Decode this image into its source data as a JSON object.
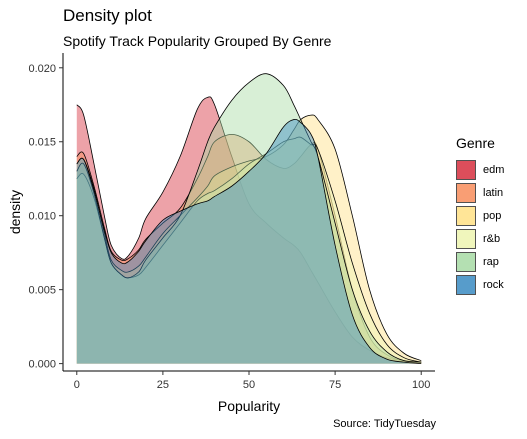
{
  "chart_data": {
    "type": "area",
    "title": "Density plot",
    "subtitle": "Spotify Track Popularity Grouped By Genre",
    "caption": "Source: TidyTuesday",
    "xlabel": "Popularity",
    "ylabel": "density",
    "xlim": [
      -4,
      104
    ],
    "ylim": [
      -0.0005,
      0.021
    ],
    "x_ticks": [
      0,
      25,
      50,
      75,
      100
    ],
    "y_ticks": [
      0.0,
      0.005,
      0.01,
      0.015,
      0.02
    ],
    "y_tick_labels": [
      "0.000",
      "0.005",
      "0.010",
      "0.015",
      "0.020"
    ],
    "grid": false,
    "legend_position": "right",
    "legend_title": "Genre",
    "fill_opacity": 0.45,
    "x": [
      0,
      2,
      5,
      8,
      10,
      13,
      15,
      18,
      20,
      25,
      30,
      35,
      38,
      40,
      45,
      50,
      55,
      60,
      63,
      65,
      68,
      70,
      75,
      80,
      85,
      90,
      95,
      100
    ],
    "series": [
      {
        "name": "edm",
        "color": "#D7303F",
        "values": [
          0.0175,
          0.0168,
          0.0135,
          0.01,
          0.008,
          0.0071,
          0.0073,
          0.0085,
          0.0098,
          0.0116,
          0.014,
          0.0172,
          0.018,
          0.0175,
          0.014,
          0.0108,
          0.0095,
          0.0085,
          0.008,
          0.0075,
          0.0063,
          0.0055,
          0.0035,
          0.0018,
          0.0009,
          0.0004,
          0.0002,
          0.0001
        ]
      },
      {
        "name": "latin",
        "color": "#F98E5C",
        "values": [
          0.014,
          0.0142,
          0.012,
          0.0092,
          0.0076,
          0.007,
          0.0071,
          0.0077,
          0.0084,
          0.0095,
          0.0105,
          0.0125,
          0.014,
          0.015,
          0.0155,
          0.015,
          0.0138,
          0.0132,
          0.0135,
          0.014,
          0.0148,
          0.0145,
          0.01,
          0.005,
          0.0018,
          0.0006,
          0.0002,
          0.0001
        ]
      },
      {
        "name": "pop",
        "color": "#FFE186",
        "values": [
          0.0135,
          0.0138,
          0.0118,
          0.0088,
          0.007,
          0.0063,
          0.0062,
          0.0066,
          0.0072,
          0.0088,
          0.01,
          0.0112,
          0.012,
          0.0127,
          0.0133,
          0.0137,
          0.014,
          0.0148,
          0.0158,
          0.0165,
          0.0168,
          0.0165,
          0.0145,
          0.01,
          0.005,
          0.002,
          0.0007,
          0.0002
        ]
      },
      {
        "name": "r&b",
        "color": "#EEF5B1",
        "values": [
          0.0125,
          0.0128,
          0.0112,
          0.0085,
          0.0068,
          0.006,
          0.0058,
          0.006,
          0.0065,
          0.008,
          0.0095,
          0.011,
          0.0115,
          0.0117,
          0.0125,
          0.0135,
          0.0142,
          0.015,
          0.0152,
          0.0153,
          0.0148,
          0.0145,
          0.011,
          0.0068,
          0.0034,
          0.0013,
          0.0004,
          0.0001
        ]
      },
      {
        "name": "rap",
        "color": "#A8DBA5",
        "values": [
          0.013,
          0.0135,
          0.0115,
          0.0085,
          0.0068,
          0.006,
          0.0058,
          0.0062,
          0.007,
          0.0085,
          0.01,
          0.013,
          0.015,
          0.016,
          0.0178,
          0.019,
          0.0196,
          0.0188,
          0.0175,
          0.0165,
          0.015,
          0.014,
          0.0095,
          0.005,
          0.0022,
          0.0008,
          0.0002,
          0.0001
        ]
      },
      {
        "name": "rock",
        "color": "#3A8BC3",
        "values": [
          0.0135,
          0.0138,
          0.0117,
          0.009,
          0.0075,
          0.0068,
          0.0069,
          0.0076,
          0.0083,
          0.0097,
          0.0103,
          0.0108,
          0.011,
          0.0113,
          0.012,
          0.013,
          0.0142,
          0.016,
          0.0165,
          0.0163,
          0.0155,
          0.014,
          0.008,
          0.0033,
          0.0011,
          0.0003,
          0.0001,
          0.0
        ]
      }
    ]
  }
}
